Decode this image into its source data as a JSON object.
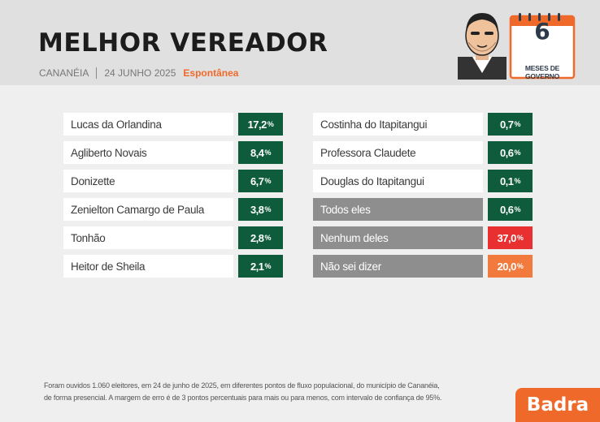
{
  "header": {
    "title": "MELHOR VEREADOR",
    "city": "CANANÉIA",
    "date": "24 JUNHO 2025",
    "tag": "Espontânea",
    "calendar_number": "6",
    "calendar_label": "MESES DE GOVERNO"
  },
  "chart_data": {
    "type": "table",
    "title": "MELHOR VEREADOR",
    "unit": "%",
    "left_column": [
      {
        "name": "Lucas da Orlandina",
        "value": "17,2",
        "pct": "%",
        "kind": "candidate"
      },
      {
        "name": "Agliberto Novais",
        "value": "8,4",
        "pct": "%",
        "kind": "candidate"
      },
      {
        "name": "Donizette",
        "value": "6,7",
        "pct": "%",
        "kind": "candidate"
      },
      {
        "name": "Zenielton Camargo de Paula",
        "value": "3,8",
        "pct": "%",
        "kind": "candidate"
      },
      {
        "name": "Tonhão",
        "value": "2,8",
        "pct": "%",
        "kind": "candidate"
      },
      {
        "name": "Heitor de Sheila",
        "value": "2,1",
        "pct": "%",
        "kind": "candidate"
      }
    ],
    "right_column": [
      {
        "name": "Costinha do Itapitangui",
        "value": "0,7",
        "pct": "%",
        "kind": "candidate"
      },
      {
        "name": "Professora Claudete",
        "value": "0,6",
        "pct": "%",
        "kind": "candidate"
      },
      {
        "name": "Douglas do Itapitangui",
        "value": "0,1",
        "pct": "%",
        "kind": "candidate"
      },
      {
        "name": "Todos eles",
        "value": "0,6",
        "pct": "%",
        "kind": "all"
      },
      {
        "name": "Nenhum deles",
        "value": "37,0",
        "pct": "%",
        "kind": "none"
      },
      {
        "name": "Não sei dizer",
        "value": "20,0",
        "pct": "%",
        "kind": "unknown"
      }
    ]
  },
  "colors": {
    "candidate": "#0f5c3d",
    "none": "#e83030",
    "unknown": "#f27a3c",
    "accent": "#ef6a2a"
  },
  "footnote": {
    "line1": "Foram ouvidos 1.060 eleitores, em 24 de junho de 2025, em diferentes pontos de fluxo populacional, do município de Cananéia,",
    "line2": "de forma presencial. A margem de erro é de 3 pontos percentuais para mais ou para menos, com intervalo de confiança de 95%."
  },
  "brand": "Badra"
}
